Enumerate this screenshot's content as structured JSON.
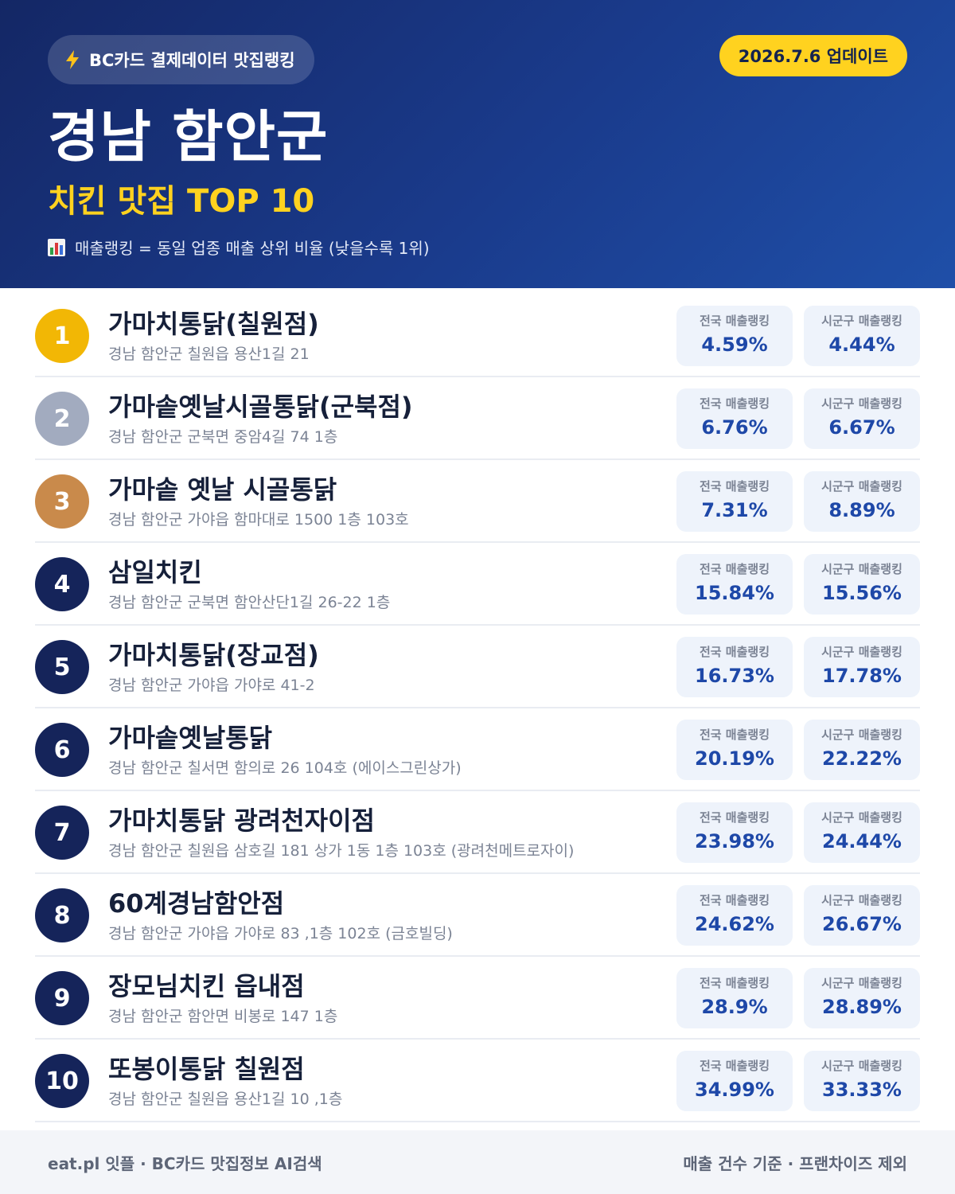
{
  "header": {
    "badge": "BC카드 결제데이터 맛집랭킹",
    "update": "2026.7.6 업데이트",
    "title": "경남 함안군",
    "subtitle": "치킨 맛집 TOP 10",
    "note": "매출랭킹 = 동일 업종 매출 상위 비율 (낮을수록 1위)"
  },
  "labels": {
    "national": "전국 매출랭킹",
    "local": "시군구 매출랭킹"
  },
  "items": [
    {
      "rank": 1,
      "name": "가마치통닭(칠원점)",
      "address": "경남 함안군 칠원읍 용산1길 21",
      "national": "4.59%",
      "local": "4.44%"
    },
    {
      "rank": 2,
      "name": "가마솥옛날시골통닭(군북점)",
      "address": "경남 함안군 군북면 중암4길 74 1층",
      "national": "6.76%",
      "local": "6.67%"
    },
    {
      "rank": 3,
      "name": "가마솥 옛날 시골통닭",
      "address": "경남 함안군 가야읍 함마대로 1500 1층 103호",
      "national": "7.31%",
      "local": "8.89%"
    },
    {
      "rank": 4,
      "name": "삼일치킨",
      "address": "경남 함안군 군북면 함안산단1길 26-22 1층",
      "national": "15.84%",
      "local": "15.56%"
    },
    {
      "rank": 5,
      "name": "가마치통닭(장교점)",
      "address": "경남 함안군 가야읍 가야로 41-2",
      "national": "16.73%",
      "local": "17.78%"
    },
    {
      "rank": 6,
      "name": "가마솥옛날통닭",
      "address": "경남 함안군 칠서면 함의로 26 104호 (에이스그린상가)",
      "national": "20.19%",
      "local": "22.22%"
    },
    {
      "rank": 7,
      "name": "가마치통닭 광려천자이점",
      "address": "경남 함안군 칠원읍 삼호길 181 상가 1동 1층 103호 (광려천메트로자이)",
      "national": "23.98%",
      "local": "24.44%"
    },
    {
      "rank": 8,
      "name": "60계경남함안점",
      "address": "경남 함안군 가야읍 가야로 83 ,1층 102호 (금호빌딩)",
      "national": "24.62%",
      "local": "26.67%"
    },
    {
      "rank": 9,
      "name": "장모님치킨 읍내점",
      "address": "경남 함안군 함안면 비봉로 147 1층",
      "national": "28.9%",
      "local": "28.89%"
    },
    {
      "rank": 10,
      "name": "또봉이통닭 칠원점",
      "address": "경남 함안군 칠원읍 용산1길 10 ,1층",
      "national": "34.99%",
      "local": "33.33%"
    }
  ],
  "footer": {
    "left": "eat.pl 잇플 · BC카드 맛집정보 AI검색",
    "right": "매출 건수 기준 · 프랜차이즈 제외"
  }
}
